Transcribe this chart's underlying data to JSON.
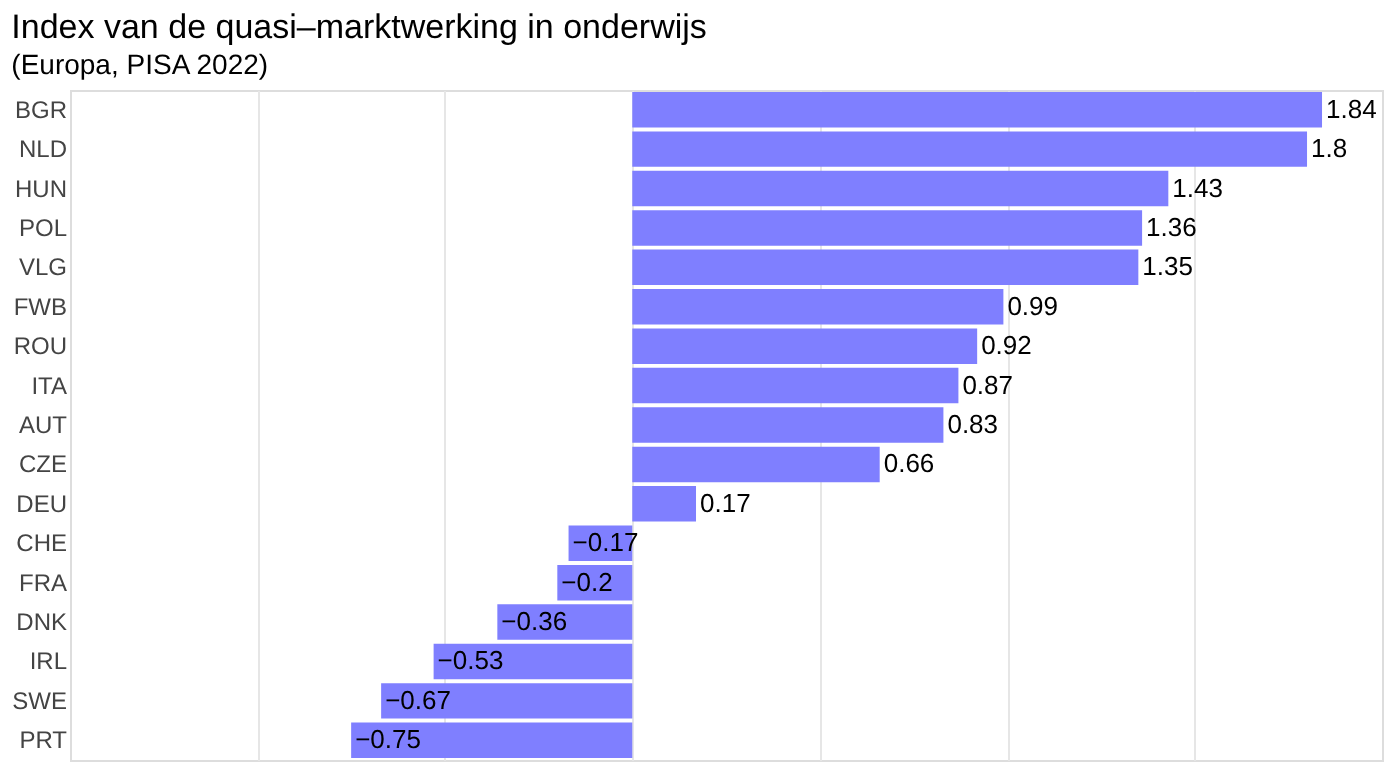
{
  "chart_data": {
    "type": "bar",
    "orientation": "horizontal",
    "title": "Index van de quasi–marktwerking in onderwijs",
    "subtitle": "(Europa, PISA 2022)",
    "categories": [
      "BGR",
      "NLD",
      "HUN",
      "POL",
      "VLG",
      "FWB",
      "ROU",
      "ITA",
      "AUT",
      "CZE",
      "DEU",
      "CHE",
      "FRA",
      "DNK",
      "IRL",
      "SWE",
      "PRT"
    ],
    "values": [
      1.84,
      1.8,
      1.43,
      1.36,
      1.35,
      0.99,
      0.92,
      0.87,
      0.83,
      0.66,
      0.17,
      -0.17,
      -0.2,
      -0.36,
      -0.53,
      -0.67,
      -0.75
    ],
    "value_labels": [
      "1.84",
      "1.8",
      "1.43",
      "1.36",
      "1.35",
      "0.99",
      "0.92",
      "0.87",
      "0.83",
      "0.66",
      "0.17",
      "−0.17",
      "−0.2",
      "−0.36",
      "−0.53",
      "−0.67",
      "−0.75"
    ],
    "color": "#7f7fff",
    "xlim": [
      -1.5,
      2.0
    ],
    "xticks": [
      {
        "value": -1,
        "label": null
      },
      {
        "value": -0.5,
        "label": null
      },
      {
        "value": 0,
        "label": null
      },
      {
        "value": 0.5,
        "label": null
      },
      {
        "value": 1,
        "label": null
      },
      {
        "value": 1.5,
        "label": null
      }
    ],
    "tick_labels": "y",
    "grid": "x"
  }
}
